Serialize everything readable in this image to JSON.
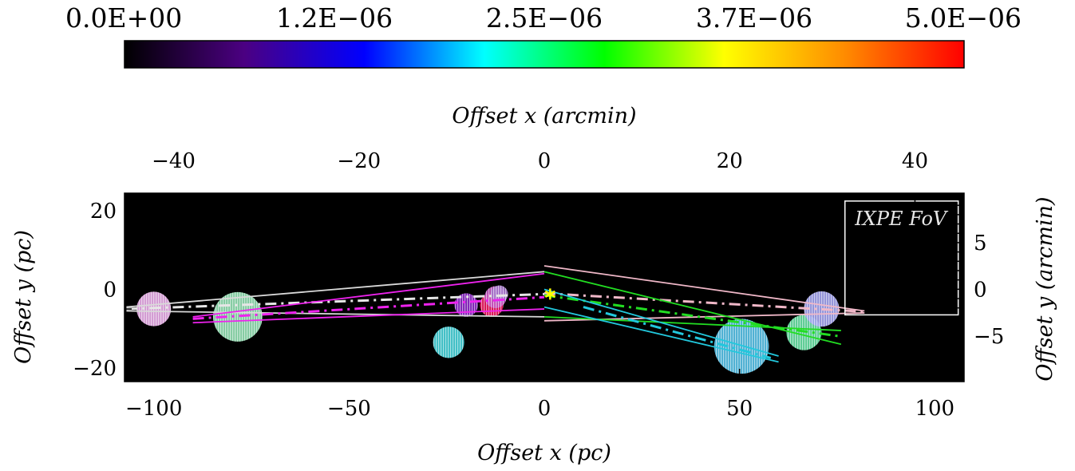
{
  "chart_data": {
    "type": "heatmap",
    "colorbar": {
      "tick_labels": [
        "0.0E+00",
        "1.2E−06",
        "2.5E−06",
        "3.7E−06",
        "5.0E−06"
      ],
      "range": [
        0,
        5e-06
      ],
      "colormap": [
        "#000000",
        "#4b0082",
        "#0000ff",
        "#00ffff",
        "#00ff00",
        "#ffff00",
        "#ff8c00",
        "#ff0000"
      ]
    },
    "axes": {
      "bottom": {
        "label": "Offset x (pc)",
        "range": [
          -107.5,
          107.5
        ],
        "tick_values": [
          -100,
          -50,
          0,
          50,
          100
        ],
        "tick_labels": [
          "−100",
          "−50",
          "0",
          "50",
          "100"
        ],
        "minor_step": 10
      },
      "left": {
        "label": "Offset y (pc)",
        "range": [
          -23.5,
          24.5
        ],
        "tick_values": [
          -20,
          0,
          20
        ],
        "tick_labels": [
          "−20",
          "0",
          "20"
        ],
        "minor_step": 5
      },
      "top": {
        "label": "Offset x (arcmin)",
        "range": [
          -45.3,
          45.3
        ],
        "tick_values": [
          -40,
          -20,
          0,
          20,
          40
        ],
        "tick_labels": [
          "−40",
          "−20",
          "0",
          "20",
          "40"
        ],
        "minor_step": 5
      },
      "right": {
        "label": "Offset y (arcmin)",
        "range": [
          -9.9,
          10.3
        ],
        "tick_values": [
          -5,
          0,
          5
        ],
        "tick_labels": [
          "−5",
          "0",
          "5"
        ],
        "minor_step": 1
      }
    },
    "fov_box": {
      "label": "IXPE FoV",
      "x": [
        77,
        106
      ],
      "y": [
        -6.5,
        22.5
      ],
      "color": "#ffffff"
    },
    "marker": {
      "x": 1.5,
      "y": -1.2,
      "color": "#ffff00",
      "symbol": "star"
    },
    "clouds": [
      {
        "x": -100,
        "y": -5,
        "r": 4.4,
        "intensity": 0.15,
        "color": "#e8a8e8"
      },
      {
        "x": -78.5,
        "y": -7,
        "r": 6.3,
        "intensity": 0.4,
        "color": "#8fe0b0"
      },
      {
        "x": -24.5,
        "y": -13.5,
        "r": 4.0,
        "intensity": 0.38,
        "color": "#3fd0d8"
      },
      {
        "x": -20,
        "y": -4,
        "r": 3.0,
        "intensity": 0.15,
        "color": "#8a20c8"
      },
      {
        "x": -13.5,
        "y": -4,
        "r": 3.0,
        "intensity": 0.95,
        "color": "#f0105a"
      },
      {
        "x": -12.5,
        "y": -2,
        "r": 2.8,
        "intensity": 0.6,
        "color": "#c050c0"
      },
      {
        "x": -11.5,
        "y": -1.2,
        "r": 2.2,
        "intensity": 0.1,
        "color": "#a070c8"
      },
      {
        "x": 50.5,
        "y": -14.5,
        "r": 7.0,
        "intensity": 0.38,
        "color": "#50c0e8"
      },
      {
        "x": 66.5,
        "y": -11,
        "r": 4.5,
        "intensity": 0.45,
        "color": "#60e0a0"
      },
      {
        "x": 71,
        "y": -5,
        "r": 4.5,
        "intensity": 0.32,
        "color": "#a0a0f0"
      }
    ],
    "lines": [
      {
        "color": "#d9d9d9",
        "dash": "solid",
        "points": [
          [
            -107,
            -4.5
          ],
          [
            0,
            4.5
          ]
        ]
      },
      {
        "color": "#d9d9d9",
        "dash": "solid",
        "points": [
          [
            -107,
            -5.5
          ],
          [
            0,
            -7
          ]
        ]
      },
      {
        "color": "#e6e6e6",
        "dash": "dashdot",
        "points": [
          [
            -107,
            -5
          ],
          [
            0,
            -1.2
          ]
        ]
      },
      {
        "color": "#ee22ee",
        "dash": "solid",
        "points": [
          [
            -90,
            -7
          ],
          [
            0,
            4
          ]
        ]
      },
      {
        "color": "#ee22ee",
        "dash": "solid",
        "points": [
          [
            -90,
            -8.5
          ],
          [
            0,
            -5
          ]
        ]
      },
      {
        "color": "#ee22ee",
        "dash": "dashdot",
        "points": [
          [
            -90,
            -7.5
          ],
          [
            0,
            -2
          ]
        ]
      },
      {
        "color": "#f0b8c8",
        "dash": "solid",
        "points": [
          [
            0,
            6
          ],
          [
            82,
            -5.5
          ]
        ]
      },
      {
        "color": "#f0b8c8",
        "dash": "solid",
        "points": [
          [
            0,
            -8
          ],
          [
            82,
            -6
          ]
        ]
      },
      {
        "color": "#f0b8c8",
        "dash": "dashdot",
        "points": [
          [
            0,
            -1
          ],
          [
            82,
            -5.7
          ]
        ]
      },
      {
        "color": "#22dd22",
        "dash": "solid",
        "points": [
          [
            0,
            4.5
          ],
          [
            76,
            -14
          ]
        ]
      },
      {
        "color": "#22dd22",
        "dash": "solid",
        "points": [
          [
            0,
            -7
          ],
          [
            76,
            -10.5
          ]
        ]
      },
      {
        "color": "#22dd22",
        "dash": "dashdot",
        "points": [
          [
            0,
            -1.5
          ],
          [
            76,
            -12
          ]
        ]
      },
      {
        "color": "#22c8dd",
        "dash": "solid",
        "points": [
          [
            0,
            0
          ],
          [
            60,
            -17
          ]
        ]
      },
      {
        "color": "#22c8dd",
        "dash": "solid",
        "points": [
          [
            0,
            -4.5
          ],
          [
            60,
            -18.5
          ]
        ]
      },
      {
        "color": "#22c8dd",
        "dash": "dashdot",
        "points": [
          [
            10,
            -4.5
          ],
          [
            58,
            -17.5
          ]
        ]
      }
    ]
  }
}
